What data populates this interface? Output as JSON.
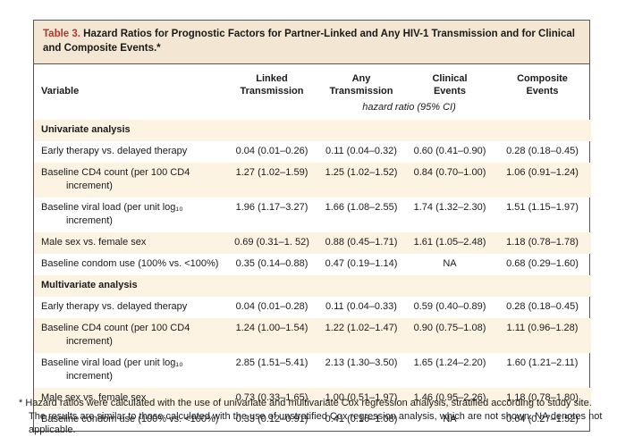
{
  "theme": {
    "red": "#b5352e",
    "cream": "#f3e7d3",
    "stripe": "#fcf3e3",
    "border": "#55565a",
    "text": "#1b1a19",
    "page-bg": "#ffffff"
  },
  "table": {
    "title_label": "Table 3.",
    "title_text": " Hazard Ratios for Prognostic Factors for Partner-Linked and Any HIV-1 Transmission and for Clinical\nand Composite Events.*",
    "columns": [
      "Variable",
      "Linked\nTransmission",
      "Any\nTransmission",
      "Clinical\nEvents",
      "Composite\nEvents"
    ],
    "subheader": "hazard ratio (95% CI)",
    "sections": [
      {
        "header": "Univariate analysis",
        "rows": [
          {
            "variable": "Early therapy vs. delayed therapy",
            "values": [
              "0.04 (0.01–0.26)",
              "0.11 (0.04–0.32)",
              "0.60 (0.41–0.90)",
              "0.28 (0.18–0.45)"
            ]
          },
          {
            "variable": "Baseline CD4 count (per 100 CD4\nincrement)",
            "values": [
              "1.27 (1.02–1.59)",
              "1.25 (1.02–1.52)",
              "0.84 (0.70–1.00)",
              "1.06 (0.91–1.24)"
            ]
          },
          {
            "variable": "Baseline viral load (per unit log₁₀\nincrement)",
            "values": [
              "1.96 (1.17–3.27)",
              "1.66 (1.08–2.55)",
              "1.74 (1.32–2.30)",
              "1.51 (1.15–1.97)"
            ]
          },
          {
            "variable": "Male sex vs. female sex",
            "values": [
              "0.69 (0.31–1. 52)",
              "0.88 (0.45–1.71)",
              "1.61 (1.05–2.48)",
              "1.18 (0.78–1.78)"
            ]
          },
          {
            "variable": "Baseline condom use (100% vs. <100%)",
            "values": [
              "0.35 (0.14–0.88)",
              "0.47 (0.19–1.14)",
              "NA",
              "0.68 (0.29–1.60)"
            ]
          }
        ]
      },
      {
        "header": "Multivariate analysis",
        "rows": [
          {
            "variable": "Early therapy vs. delayed therapy",
            "values": [
              "0.04 (0.01–0.28)",
              "0.11 (0.04–0.33)",
              "0.59 (0.40–0.89)",
              "0.28 (0.18–0.45)"
            ]
          },
          {
            "variable": "Baseline CD4 count (per 100 CD4\nincrement)",
            "values": [
              "1.24 (1.00–1.54)",
              "1.22 (1.02–1.47)",
              "0.90 (0.75–1.08)",
              "1.11 (0.96–1.28)"
            ]
          },
          {
            "variable": "Baseline viral load (per unit log₁₀\nincrement)",
            "values": [
              "2.85 (1.51–5.41)",
              "2.13 (1.30–3.50)",
              "1.65 (1.24–2.20)",
              "1.60 (1.21–2.11)"
            ]
          },
          {
            "variable": "Male sex vs. female sex",
            "values": [
              "0.73 (0.33–1.65)",
              "1.00 (0.51–1.97)",
              "1.46 (0.95–2.26)",
              "1.18 (0.78–1.80)"
            ]
          },
          {
            "variable": "Baseline condom use (100% vs. <100%)",
            "values": [
              "0.33 (0.12–0.91)",
              "0.41 (0.16–1.08)",
              "NA",
              "0.64 (0.27–1.52)"
            ]
          }
        ]
      }
    ],
    "footnote": "* Hazard ratios were calculated with the use of univariate and multivariate Cox regression analysis, stratified according to study site. The results are similar to those calculated with the use of unstratified Cox regression analysis, which are not shown. NA denotes not applicable."
  }
}
